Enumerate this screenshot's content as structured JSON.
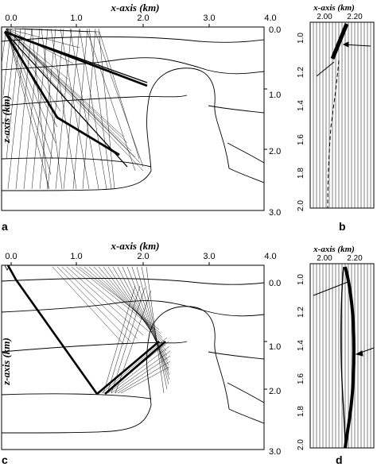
{
  "panels": [
    {
      "label": "a",
      "x_title": "x-axis (km)",
      "z_title": "z-axis (km)",
      "x_ticks": [
        "0.0",
        "1.0",
        "2.0",
        "3.0",
        "4.0"
      ],
      "z_ticks": [
        "0.0",
        "1.0",
        "2.0",
        "3.0"
      ]
    },
    {
      "label": "b",
      "x_title": "x-axis (km)",
      "x_ticks": [
        "2.00",
        "2.20"
      ],
      "t_ticks": [
        "1.0",
        "1.2",
        "1.4",
        "1.6",
        "1.8",
        "2.0"
      ]
    },
    {
      "label": "c",
      "x_title": "x-axis (km)",
      "z_title": "z-axis (km)",
      "x_ticks": [
        "0.0",
        "1.0",
        "2.0",
        "3.0",
        "4.0"
      ],
      "z_ticks": [
        "0.0",
        "1.0",
        "2.0",
        "3.0"
      ]
    },
    {
      "label": "d",
      "x_title": "x-axis (km)",
      "x_ticks": [
        "2.00",
        "2.20"
      ],
      "t_ticks": [
        "1.0",
        "1.2",
        "1.4",
        "1.6",
        "1.8",
        "2.0"
      ]
    }
  ]
}
